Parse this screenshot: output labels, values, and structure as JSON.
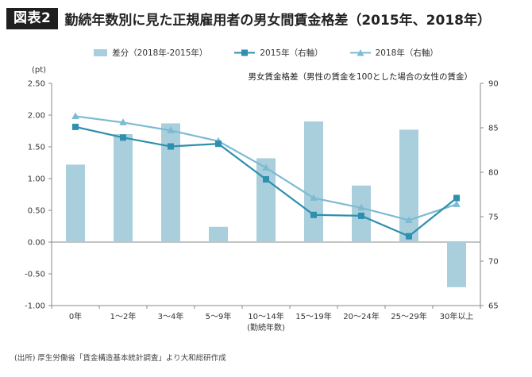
{
  "header": {
    "badge": "図表2",
    "title": "勤続年数別に見た正規雇用者の男女間賃金格差（2015年、2018年）"
  },
  "source": "(出所) 厚生労働省「賃金構造基本統計調査」より大和総研作成",
  "colors": {
    "bar": "#a9cfdd",
    "line_2015": "#2e8fae",
    "line_2018": "#7dbbd3"
  },
  "chart_data": {
    "type": "bar",
    "annotation": "男女賃金格差（男性の賃金を100とした場合の女性の賃金）",
    "left_axis_unit": "(pt)",
    "xlabel": "(勤続年数)",
    "categories": [
      "0年",
      "1～2年",
      "3～4年",
      "5～9年",
      "10～14年",
      "15～19年",
      "20～24年",
      "25～29年",
      "30年以上"
    ],
    "ylim_left": [
      -1.0,
      2.5
    ],
    "yticks_left": [
      "2.50",
      "2.00",
      "1.50",
      "1.00",
      "0.50",
      "0.00",
      "-0.50",
      "-1.00"
    ],
    "ylim_right": [
      65,
      90
    ],
    "yticks_right": [
      "90",
      "85",
      "80",
      "75",
      "70",
      "65"
    ],
    "series": [
      {
        "name": "差分（2018年-2015年）",
        "kind": "bar",
        "axis": "left",
        "values": [
          1.22,
          1.7,
          1.87,
          0.24,
          1.32,
          1.9,
          0.89,
          1.77,
          -0.71
        ]
      },
      {
        "name": "2015年（右軸）",
        "kind": "line",
        "marker": "square",
        "axis": "right",
        "values": [
          85.1,
          83.9,
          82.9,
          83.2,
          79.2,
          75.2,
          75.1,
          72.8,
          77.1
        ]
      },
      {
        "name": "2018年（右軸）",
        "kind": "line",
        "marker": "triangle",
        "axis": "right",
        "values": [
          86.3,
          85.6,
          84.7,
          83.5,
          80.5,
          77.1,
          76.0,
          74.6,
          76.4
        ]
      }
    ]
  }
}
